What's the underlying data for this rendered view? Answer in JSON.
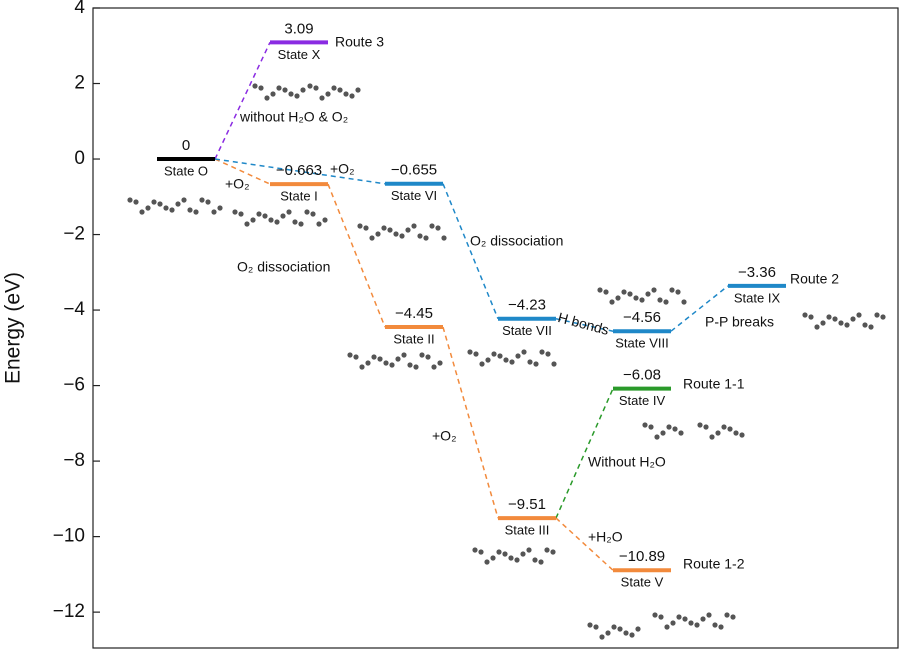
{
  "chart_data": {
    "type": "energy_levels",
    "ylabel": "Energy (eV)",
    "ylim": [
      -12.95,
      4
    ],
    "yticks": [
      4,
      2,
      0,
      {
        "value": -2,
        "label": "−2"
      },
      {
        "value": -4,
        "label": "−4"
      },
      {
        "value": -6,
        "label": "−6"
      },
      {
        "value": -8,
        "label": "−8"
      },
      {
        "value": -10,
        "label": "−10"
      },
      {
        "value": -12,
        "label": "−12"
      }
    ],
    "levels": [
      {
        "name": "State O",
        "value": 0,
        "value_label": "0",
        "color": "#000000"
      },
      {
        "name": "State I",
        "value": -0.663,
        "value_label": "−0.663",
        "color": "#f28a3c"
      },
      {
        "name": "State VI",
        "value": -0.655,
        "value_label": "−0.655",
        "color": "#1f88c8"
      },
      {
        "name": "State X",
        "value": 3.09,
        "value_label": "3.09",
        "color": "#8a2be2"
      },
      {
        "name": "State II",
        "value": -4.45,
        "value_label": "−4.45",
        "color": "#f28a3c"
      },
      {
        "name": "State VII",
        "value": -4.23,
        "value_label": "−4.23",
        "color": "#1f88c8"
      },
      {
        "name": "State VIII",
        "value": -4.56,
        "value_label": "−4.56",
        "color": "#1f88c8"
      },
      {
        "name": "State IX",
        "value": -3.36,
        "value_label": "−3.36",
        "color": "#1f88c8"
      },
      {
        "name": "State III",
        "value": -9.51,
        "value_label": "−9.51",
        "color": "#f28a3c"
      },
      {
        "name": "State IV",
        "value": -6.08,
        "value_label": "−6.08",
        "color": "#2a9a2a"
      },
      {
        "name": "State V",
        "value": -10.89,
        "value_label": "−10.89",
        "color": "#f28a3c"
      }
    ],
    "annotations": [
      "Route 3",
      "without H₂O & O₂",
      "+O₂",
      "+O₂",
      "+O₂",
      "O₂ dissociation",
      "O₂ dissociation",
      "H bonds",
      "P-P breaks",
      "Route 2",
      "Route 1-1",
      "Without H₂O",
      "+H₂O",
      "Route 1-2"
    ]
  }
}
